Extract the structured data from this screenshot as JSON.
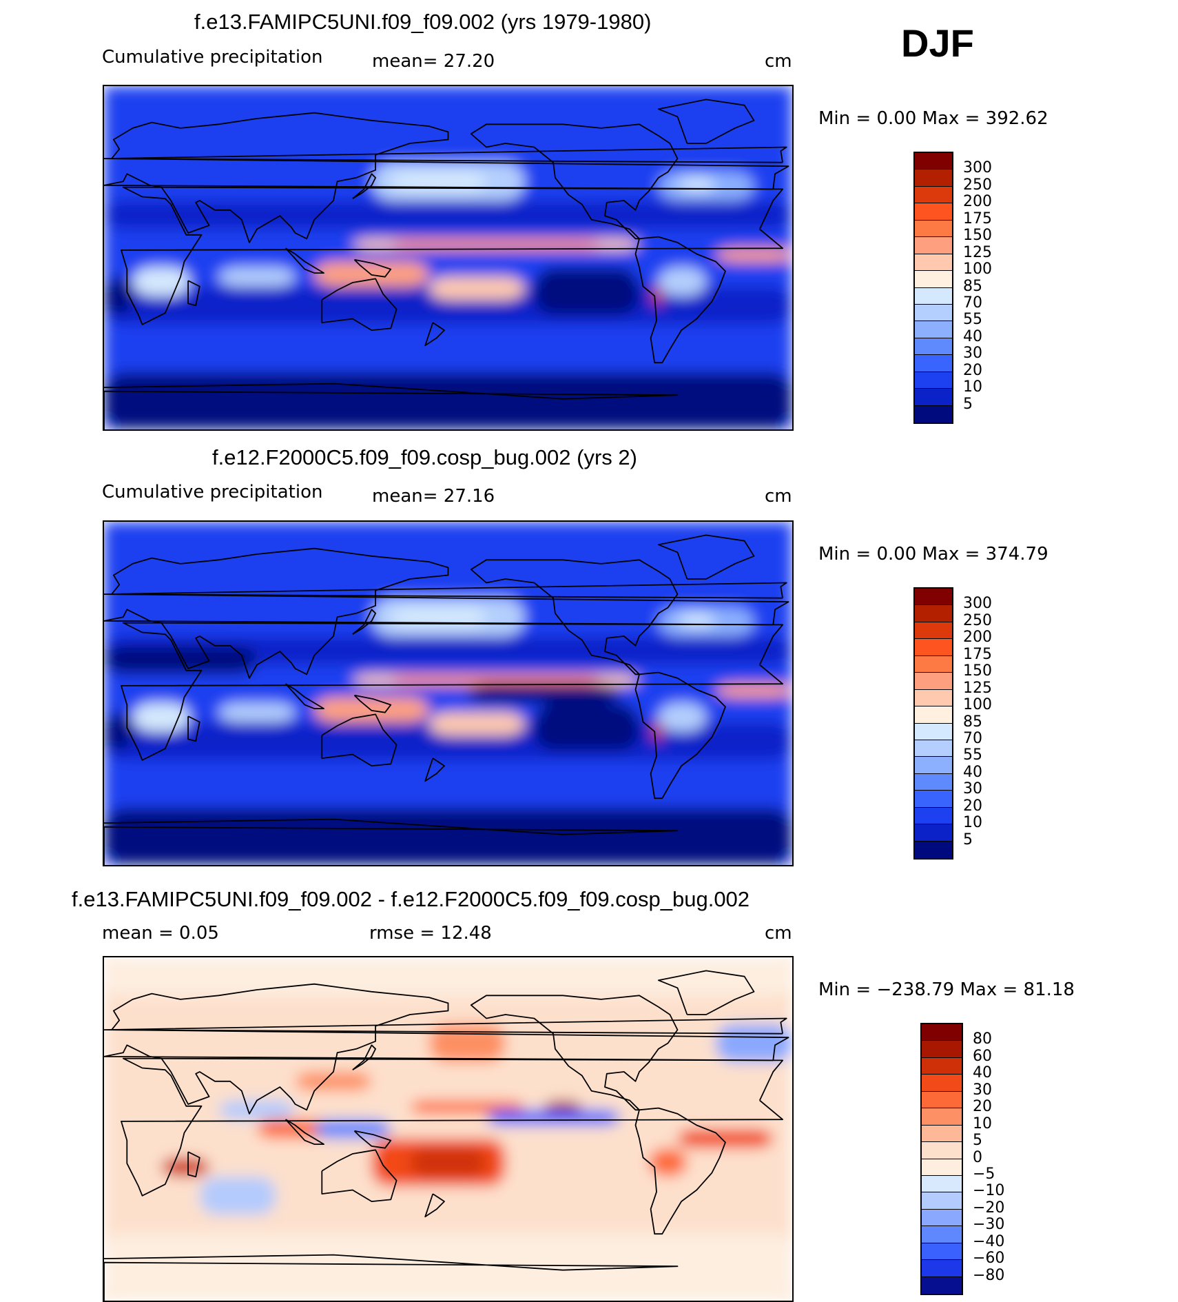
{
  "season": "DJF",
  "panels": [
    {
      "title": "f.e13.FAMIPC5UNI.f09_f09.002 (yrs 1979-1980)",
      "left_label": "Cumulative precipitation",
      "mid_label": "mean=   27.20",
      "units": "cm",
      "minmax": "Min =     0.00 Max  =  392.62",
      "field": "precip"
    },
    {
      "title": "f.e12.F2000C5.f09_f09.cosp_bug.002 (yrs 2)",
      "left_label": "Cumulative precipitation",
      "mid_label": "mean=   27.16",
      "units": "cm",
      "minmax": "Min =     0.00 Max  =  374.79",
      "field": "precip"
    },
    {
      "title": "f.e13.FAMIPC5UNI.f09_f09.002 - f.e12.F2000C5.f09_f09.cosp_bug.002",
      "left_label": "mean =    0.05",
      "mid_label": "rmse =   12.48",
      "units": "cm",
      "minmax": "Min = −238.79 Max =   81.18",
      "field": "diff"
    }
  ],
  "precip_colorbar": {
    "labels": [
      "300",
      "250",
      "200",
      "175",
      "150",
      "125",
      "100",
      "85",
      "70",
      "55",
      "40",
      "30",
      "20",
      "10",
      "5"
    ],
    "colors": [
      "#800000",
      "#b22000",
      "#dc3a0c",
      "#fe5520",
      "#fe7a44",
      "#fea080",
      "#fec9ae",
      "#fff0e0",
      "#d4e9fd",
      "#b4cffd",
      "#8cb0fe",
      "#5f8afe",
      "#3a64fe",
      "#1d40f0",
      "#0c22c9",
      "#000a7f"
    ]
  },
  "diff_colorbar": {
    "labels": [
      "80",
      "60",
      "40",
      "30",
      "20",
      "10",
      "5",
      "0",
      "−5",
      "−10",
      "−20",
      "−30",
      "−40",
      "−60",
      "−80"
    ],
    "colors": [
      "#800000",
      "#a81800",
      "#d03008",
      "#f24a18",
      "#fd6a38",
      "#fd9064",
      "#fdb898",
      "#fde0cc",
      "#fdeee0",
      "#d8e8fd",
      "#b4cbfd",
      "#8aa8fe",
      "#6088fe",
      "#3a60fe",
      "#1c38e8",
      "#050f90"
    ]
  }
}
